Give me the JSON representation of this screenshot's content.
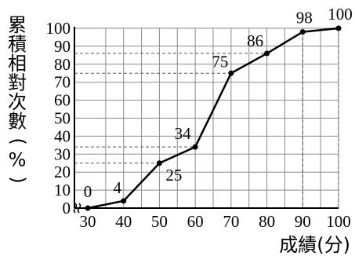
{
  "chart_data": {
    "type": "line",
    "title": "",
    "ylabel": "累積相對次數(%)",
    "ylabel_chars": [
      "累",
      "積",
      "相",
      "對",
      "次",
      "數",
      "(",
      "%",
      ")"
    ],
    "xlabel": "成績(分)",
    "x_ticks": [
      "30",
      "40",
      "50",
      "60",
      "70",
      "80",
      "90",
      "100"
    ],
    "y_ticks": [
      "0",
      "10",
      "20",
      "30",
      "40",
      "50",
      "60",
      "70",
      "80",
      "90",
      "100"
    ],
    "xlim": [
      30,
      100
    ],
    "ylim": [
      0,
      100
    ],
    "grid": true,
    "axis_break_x": true,
    "series": [
      {
        "x": [
          30,
          40,
          50,
          60,
          70,
          80,
          90,
          100
        ],
        "y": [
          0,
          4,
          25,
          34,
          75,
          86,
          98,
          100
        ],
        "labels": [
          "0",
          "4",
          "25",
          "34",
          "75",
          "86",
          "98",
          "100"
        ]
      }
    ],
    "reference_lines_y": [
      25,
      34,
      75,
      86
    ]
  }
}
